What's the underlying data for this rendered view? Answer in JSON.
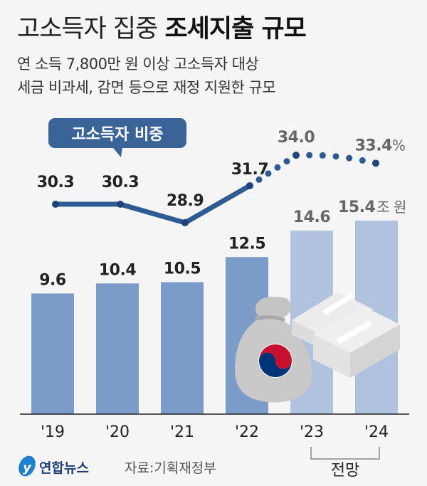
{
  "header": {
    "title_light": "고소득자 집중",
    "title_bold": "조세지출 규모",
    "subtitle_lines": [
      "연 소득 7,800만 원 이상 고소득자 대상",
      "세금 비과세, 감면 등으로 재정 지원한 규모"
    ]
  },
  "chart_data": {
    "type": "bar",
    "categories": [
      "'19",
      "'20",
      "'21",
      "'22",
      "'23",
      "'24"
    ],
    "series": [
      {
        "type": "bar",
        "values": [
          9.6,
          10.4,
          10.5,
          12.5,
          14.6,
          15.4
        ],
        "labels": [
          "9.6",
          "10.4",
          "10.5",
          "12.5",
          "14.6",
          "15.4"
        ],
        "unit": "조 원",
        "colors": [
          "#7b9cc8",
          "#7b9cc8",
          "#7b9cc8",
          "#7b9cc8",
          "#b0c2de",
          "#b0c2de"
        ]
      },
      {
        "type": "line",
        "name": "고소득자 비중",
        "values": [
          30.3,
          30.3,
          28.9,
          31.7,
          34.0,
          33.4
        ],
        "labels": [
          "30.3",
          "30.3",
          "28.9",
          "31.7",
          "34.0",
          "33.4"
        ],
        "unit": "%",
        "color": "#2e5b94",
        "dotted_from_index": 3
      }
    ],
    "forecast_categories": [
      "'23",
      "'24"
    ],
    "forecast_label": "전망",
    "grid": false
  },
  "footer": {
    "logo": "연합뉴스",
    "source": "자료:기획재정부"
  },
  "colors": {
    "bar": "#7b9cc8",
    "bar_forecast": "#b0c2de",
    "line": "#2e5b94",
    "callout": "#3a6398"
  }
}
